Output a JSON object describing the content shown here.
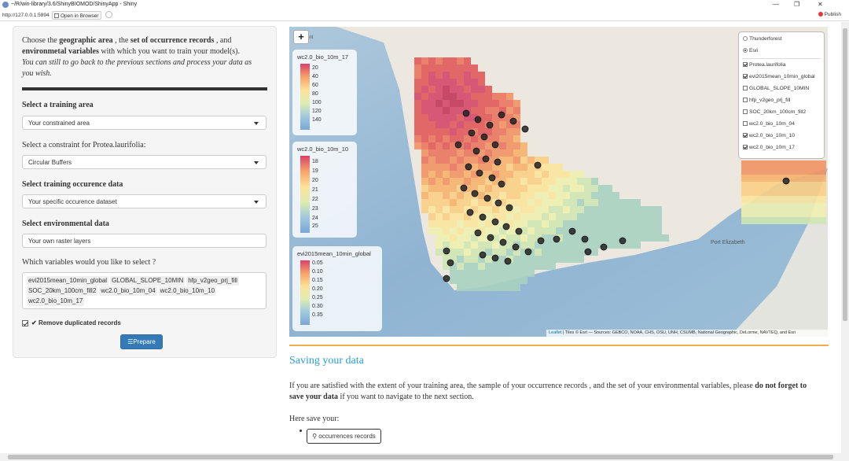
{
  "window": {
    "title": "~/R/win-library/3.6/ShinyBIOMOD/ShinyApp - Shiny",
    "url": "http://127.0.0.1:5894",
    "open_in_browser": "Open in Browser",
    "publish": "Publish"
  },
  "sidebar": {
    "intro_line1_a": "Choose the ",
    "intro_line1_b": "geographic area",
    "intro_line1_c": " , the ",
    "intro_line1_d": "set of occurrence records",
    "intro_line1_e": " , and",
    "intro_line2_a": "environmetal variables",
    "intro_line2_b": " with which you want to train your model(s).",
    "intro_line3": "You can still to go back to the previous sections and process your data as",
    "intro_line4": "you wish.",
    "training_area_label": "Select a training area",
    "training_area_value": "Your constrained area",
    "constraint_label": "Select a constraint for Protea.laurifolia:",
    "constraint_value": "Circular Buffers",
    "occurrence_label": "Select training occurence data",
    "occurrence_value": "Your specific occurence dataset",
    "env_label": "Select environmental data",
    "env_value": "Your own raster layers",
    "variables_label": "Which variables would you like to select ?",
    "variables": [
      "evi2015mean_10min_global",
      "GLOBAL_SLOPE_10MIN",
      "hfp_v2geo_prj_fill",
      "SOC_20km_100cm_fill2",
      "wc2.0_bio_10m_04",
      "wc2.0_bio_10m_10",
      "wc2.0_bio_10m_17"
    ],
    "remove_dup_label": "Remove duplicated records",
    "prepare_label": "Prepare"
  },
  "map": {
    "zoom_in": "+",
    "basemap_fragment": "unt",
    "place_label": "Port Elizabeth",
    "legends": [
      {
        "title": "wc2.0_bio_10m_17",
        "ticks": [
          "20",
          "40",
          "60",
          "80",
          "100",
          "120",
          "140"
        ]
      },
      {
        "title": "wc2.0_bio_10m_10",
        "ticks": [
          "18",
          "19",
          "20",
          "21",
          "22",
          "23",
          "24",
          "25"
        ]
      },
      {
        "title": "evi2015mean_10min_global",
        "ticks": [
          "0.05",
          "0.10",
          "0.15",
          "0.20",
          "0.25",
          "0.30",
          "0.35"
        ]
      }
    ],
    "basemaps": [
      {
        "label": "Thunderforest",
        "selected": false
      },
      {
        "label": "Esri",
        "selected": true
      }
    ],
    "overlays": [
      {
        "label": "Protea.laurifolia",
        "checked": true
      },
      {
        "label": "evi2015mean_10min_global",
        "checked": true
      },
      {
        "label": "GLOBAL_SLOPE_10MIN",
        "checked": false
      },
      {
        "label": "hfp_v2geo_prj_fill",
        "checked": false
      },
      {
        "label": "SOC_20km_100cm_fill2",
        "checked": false
      },
      {
        "label": "wc2.0_bio_10m_04",
        "checked": false
      },
      {
        "label": "wc2.0_bio_10m_10",
        "checked": true
      },
      {
        "label": "wc2.0_bio_10m_17",
        "checked": true
      }
    ],
    "attribution_link": "Leaflet",
    "attribution_text": " | Tiles © Esri — Sources: GEBCO, NOAA, CHS, OSU, UNH, CSUMB, National Geographic, DeLorme, NAVTEQ, and Esri"
  },
  "saving": {
    "heading": "Saving your data",
    "para_a": "If you are satisfied with the extent of your training area, the sample of your occurrence records , and the set of your environmental variables, please ",
    "para_b": "do not forget to",
    "para_c": "save your data",
    "para_d": " if you want to navigate to the next section.",
    "here": "Here save your:",
    "occurrences_button": "occurrences records"
  },
  "colors": {
    "accent_blue": "#337ab7",
    "heading_blue": "#2a9fd6",
    "divider_gold": "#f0ad4e"
  }
}
